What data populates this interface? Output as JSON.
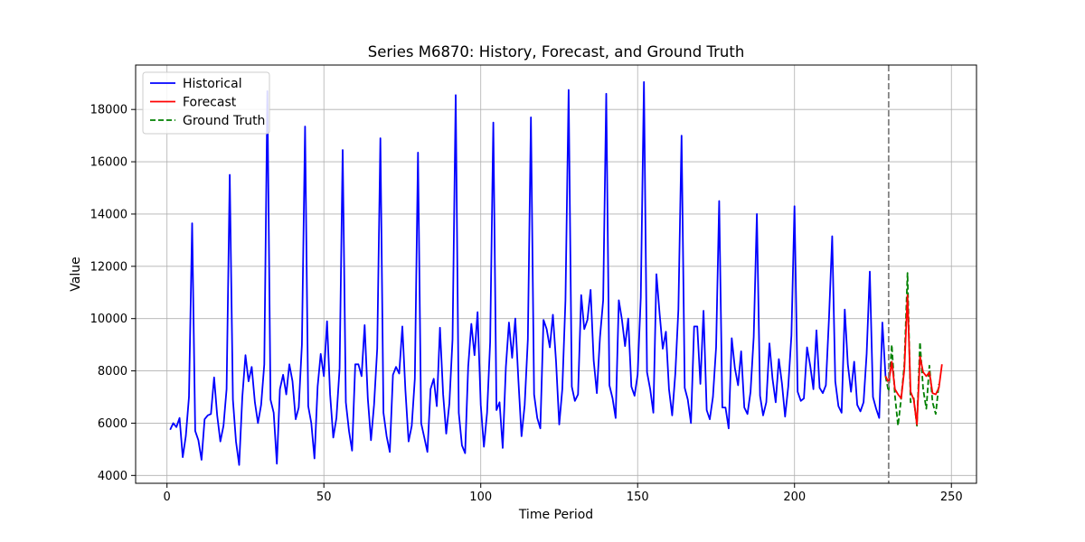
{
  "chart_data": {
    "type": "line",
    "title": "Series M6870: History, Forecast, and Ground Truth",
    "xlabel": "Time Period",
    "ylabel": "Value",
    "xlim": [
      -10,
      258
    ],
    "ylim": [
      3700,
      19700
    ],
    "xticks": [
      0,
      50,
      100,
      150,
      200,
      250
    ],
    "yticks": [
      4000,
      6000,
      8000,
      10000,
      12000,
      14000,
      16000,
      18000
    ],
    "grid": true,
    "legend_position": "top-left",
    "forecast_start": 230,
    "colors": {
      "historical": "#0000ff",
      "forecast": "#ff0000",
      "ground_truth": "#008000",
      "divider": "#808080",
      "grid": "#b0b0b0"
    },
    "series": [
      {
        "name": "Historical",
        "style": "solid",
        "x_start": 1,
        "values": [
          5750,
          6000,
          5850,
          6200,
          4700,
          5500,
          7000,
          13650,
          5700,
          5350,
          4600,
          6150,
          6300,
          6350,
          7750,
          6300,
          5300,
          5900,
          7300,
          15500,
          6900,
          5300,
          4400,
          7000,
          8600,
          7600,
          8150,
          6800,
          6000,
          6700,
          8250,
          18700,
          6900,
          6400,
          4450,
          7300,
          7850,
          7100,
          8250,
          7600,
          6150,
          6600,
          9000,
          17350,
          6650,
          6000,
          4650,
          7400,
          8650,
          7800,
          9900,
          7100,
          5450,
          6200,
          8100,
          16450,
          6800,
          5700,
          4950,
          8250,
          8250,
          7800,
          9750,
          6950,
          5350,
          6700,
          8850,
          16900,
          6400,
          5500,
          4900,
          7850,
          8150,
          7900,
          9700,
          7250,
          5300,
          5900,
          7700,
          16350,
          6000,
          5450,
          4900,
          7300,
          7700,
          6650,
          9650,
          7100,
          5600,
          6750,
          9200,
          18550,
          6400,
          5150,
          4850,
          8150,
          9800,
          8600,
          10250,
          6700,
          5100,
          6400,
          9100,
          17500,
          6500,
          6800,
          5050,
          8150,
          9850,
          8500,
          10000,
          7600,
          5500,
          6700,
          9200,
          17700,
          7100,
          6200,
          5800,
          9950,
          9600,
          8900,
          10150,
          8350,
          5950,
          7300,
          10700,
          18750,
          7400,
          6850,
          7100,
          10900,
          9600,
          9950,
          11100,
          8400,
          7150,
          9300,
          10700,
          18600,
          7450,
          6950,
          6200,
          10700,
          9950,
          8950,
          10000,
          7400,
          7050,
          7850,
          10800,
          19050,
          7950,
          7300,
          6400,
          11700,
          10200,
          8850,
          9500,
          7300,
          6300,
          7900,
          10350,
          17000,
          7350,
          6900,
          6000,
          9700,
          9700,
          7500,
          10300,
          6500,
          6150,
          7000,
          8900,
          14500,
          6600,
          6600,
          5800,
          9250,
          8100,
          7450,
          8750,
          6600,
          6350,
          7200,
          9300,
          14000,
          7050,
          6300,
          6800,
          9050,
          7700,
          6800,
          8450,
          7500,
          6250,
          7400,
          9350,
          14300,
          7200,
          6850,
          6950,
          8900,
          8200,
          7300,
          9550,
          7350,
          7150,
          7450,
          10050,
          13150,
          7600,
          6650,
          6400,
          10350,
          8250,
          7200,
          8350,
          6700,
          6450,
          6800,
          8650,
          11800,
          7000,
          6550,
          6200,
          9850,
          7800
        ]
      },
      {
        "name": "Forecast",
        "style": "solid",
        "x_start": 229,
        "values": [
          7800,
          7550,
          8350,
          7300,
          7100,
          6950,
          8050,
          10900,
          7200,
          6900,
          5950,
          8550,
          7950,
          7800,
          7950,
          7150,
          7100,
          7350,
          8250
        ]
      },
      {
        "name": "Ground Truth",
        "style": "dashed",
        "x_start": 229,
        "values": [
          7800,
          7200,
          9000,
          7050,
          5900,
          6950,
          8250,
          11750,
          6800,
          6950,
          5900,
          9100,
          7300,
          6550,
          8200,
          6800,
          6350,
          7500
        ]
      }
    ]
  }
}
